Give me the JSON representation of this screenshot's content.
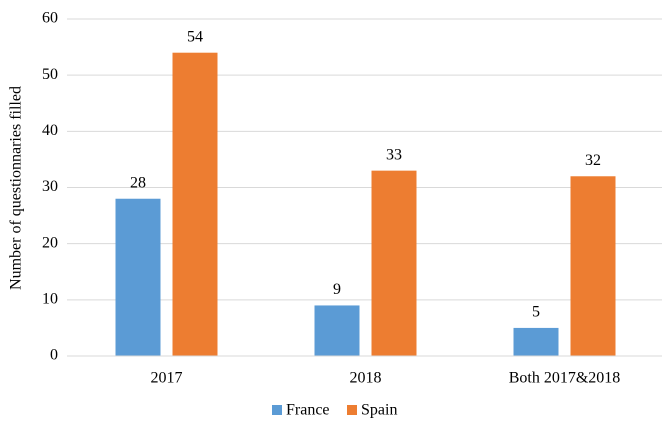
{
  "chart_data": {
    "type": "bar",
    "y_label": "Number of questionnaries filled",
    "categories": [
      "2017",
      "2018",
      "Both 2017&2018"
    ],
    "series": [
      {
        "name": "France",
        "color": "#5b9bd5",
        "values": [
          28,
          9,
          5
        ]
      },
      {
        "name": "Spain",
        "color": "#ed7d31",
        "values": [
          54,
          33,
          32
        ]
      }
    ],
    "ylim": [
      0,
      60
    ],
    "yticks": [
      0,
      10,
      20,
      30,
      40,
      50,
      60
    ],
    "grid": true,
    "legend": "bottom"
  }
}
